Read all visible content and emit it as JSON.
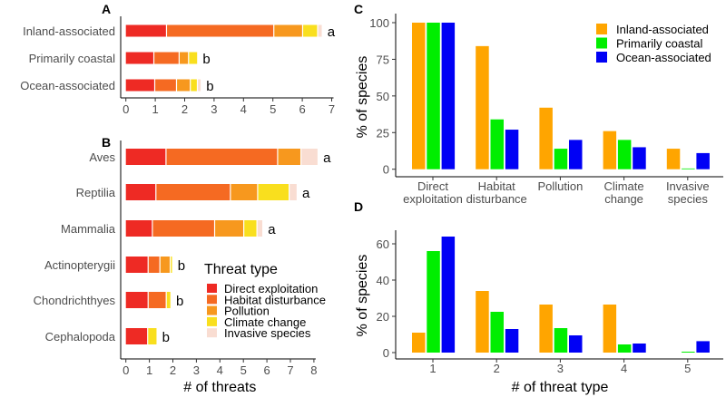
{
  "chart_data": [
    {
      "panel": "A",
      "type": "bar",
      "orientation": "horizontal",
      "stacked": true,
      "categories": [
        "Inland-associated",
        "Primarily coastal",
        "Ocean-associated"
      ],
      "series": [
        {
          "name": "Direct exploitation",
          "values": [
            1.4,
            0.97,
            1.0
          ]
        },
        {
          "name": "Habitat disturbance",
          "values": [
            3.65,
            0.86,
            0.74
          ]
        },
        {
          "name": "Pollution",
          "values": [
            0.98,
            0.32,
            0.47
          ]
        },
        {
          "name": "Climate change",
          "values": [
            0.51,
            0.31,
            0.24
          ]
        },
        {
          "name": "Invasive species",
          "values": [
            0.16,
            0,
            0.13
          ]
        }
      ],
      "annotations": [
        "a",
        "b",
        "b"
      ],
      "xlim": [
        0,
        7
      ],
      "xticks": [
        "0",
        "1",
        "2",
        "3",
        "4",
        "5",
        "6",
        "7"
      ],
      "xlabel": ""
    },
    {
      "panel": "B",
      "type": "bar",
      "orientation": "horizontal",
      "stacked": true,
      "categories": [
        "Aves",
        "Reptilia",
        "Mammalia",
        "Actinopterygii",
        "Chondrichthyes",
        "Cephalopoda"
      ],
      "series": [
        {
          "name": "Direct exploitation",
          "values": [
            1.73,
            1.3,
            1.15,
            0.97,
            0.97,
            0.95
          ]
        },
        {
          "name": "Habitat disturbance",
          "values": [
            4.75,
            3.17,
            2.65,
            0.5,
            0.77,
            0
          ]
        },
        {
          "name": "Pollution",
          "values": [
            0.99,
            1.16,
            1.24,
            0.44,
            0,
            0
          ]
        },
        {
          "name": "Climate change",
          "values": [
            0,
            1.34,
            0.56,
            0.1,
            0.2,
            0.4
          ]
        },
        {
          "name": "Invasive species",
          "values": [
            0.73,
            0.34,
            0.25,
            0,
            0,
            0
          ]
        }
      ],
      "annotations": [
        "a",
        "a",
        "a",
        "b",
        "b",
        "b"
      ],
      "xlim": [
        0,
        8
      ],
      "xticks": [
        "0",
        "1",
        "2",
        "3",
        "4",
        "5",
        "6",
        "7",
        "8"
      ],
      "xlabel": "# of threats",
      "legend_title": "Threat type",
      "legend_placement": "bottom-right"
    },
    {
      "panel": "C",
      "type": "bar",
      "grouped": true,
      "categories": [
        [
          "Direct",
          "exploitation"
        ],
        [
          "Habitat",
          "disturbance"
        ],
        [
          "Pollution",
          ""
        ],
        [
          "Climate",
          "change"
        ],
        [
          "Invasive",
          "species"
        ]
      ],
      "series": [
        {
          "name": "Inland-associated",
          "values": [
            100,
            84,
            42,
            26,
            14
          ]
        },
        {
          "name": "Primarily coastal",
          "values": [
            100,
            34,
            14,
            20,
            0.5
          ]
        },
        {
          "name": "Ocean-associated",
          "values": [
            100,
            27,
            20,
            15,
            11
          ]
        }
      ],
      "ylim": [
        0,
        105
      ],
      "yticks": [
        "0",
        "25",
        "50",
        "75",
        "100"
      ],
      "ylabel": "% of species",
      "xlabel": "",
      "legend_placement": "top-right"
    },
    {
      "panel": "D",
      "type": "bar",
      "grouped": true,
      "categories": [
        "1",
        "2",
        "3",
        "4",
        "5"
      ],
      "series": [
        {
          "name": "Inland-associated",
          "values": [
            11,
            34,
            26.5,
            26.5,
            0
          ]
        },
        {
          "name": "Primarily coastal",
          "values": [
            56,
            22.5,
            13.5,
            4.5,
            0.5
          ]
        },
        {
          "name": "Ocean-associated",
          "values": [
            64,
            13,
            9.5,
            5,
            6.3
          ]
        }
      ],
      "ylim": [
        0,
        67
      ],
      "yticks": [
        "0",
        "20",
        "40",
        "60"
      ],
      "ylabel": "% of species",
      "xlabel": "# of threat type"
    }
  ],
  "colors": {
    "threat": [
      "#EE2A24",
      "#F56A22",
      "#F7981E",
      "#F9DF1E",
      "#F9DDD2"
    ],
    "habitat": [
      "#FFA500",
      "#00EE00",
      "#0000F5"
    ]
  }
}
